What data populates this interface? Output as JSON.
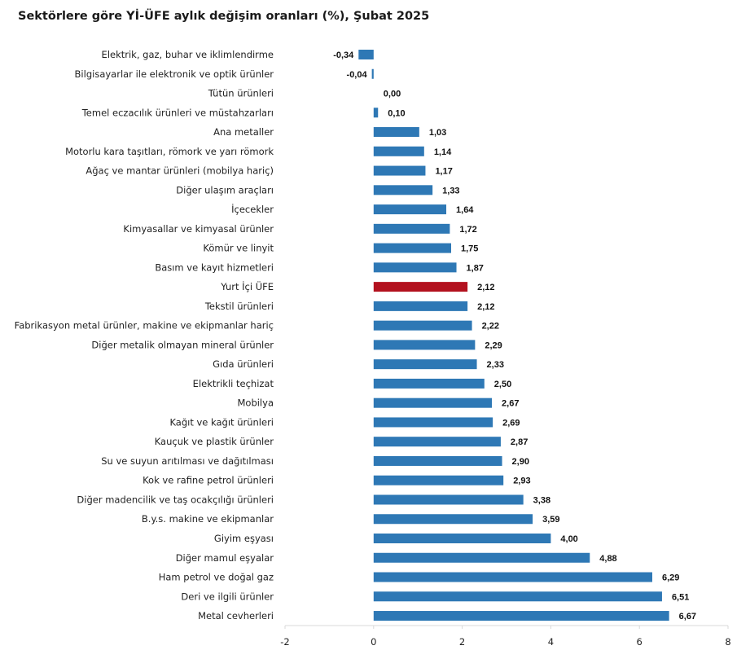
{
  "chart_data": {
    "type": "bar",
    "orientation": "horizontal",
    "title": "Sektörlere göre Yİ-ÜFE aylık değişim oranları (%), Şubat 2025",
    "xlabel": "",
    "ylabel": "",
    "xlim": [
      -2,
      8
    ],
    "ticks": [
      "-2",
      "0",
      "2",
      "4",
      "6",
      "8"
    ],
    "tick_values": [
      -2,
      0,
      2,
      4,
      6,
      8
    ],
    "grid": false,
    "default_color": "#2e78b5",
    "highlight_color": "#b3121f",
    "highlight_category": "Yurt İçi ÜFE",
    "categories": [
      "Elektrik, gaz, buhar ve iklimlendirme",
      "Bilgisayarlar ile elektronik ve optik ürünler",
      "Tütün ürünleri",
      "Temel eczacılık ürünleri ve müstahzarları",
      "Ana metaller",
      "Motorlu kara taşıtları, römork ve yarı römork",
      "Ağaç ve mantar ürünleri (mobilya hariç)",
      "Diğer ulaşım araçları",
      "İçecekler",
      "Kimyasallar ve kimyasal ürünler",
      "Kömür ve linyit",
      "Basım ve kayıt hizmetleri",
      "Yurt İçi ÜFE",
      "Tekstil ürünleri",
      "Fabrikasyon metal ürünler, makine ve ekipmanlar hariç",
      "Diğer metalik olmayan mineral ürünler",
      "Gıda ürünleri",
      "Elektrikli teçhizat",
      "Mobilya",
      "Kağıt ve kağıt ürünleri",
      "Kauçuk ve plastik ürünler",
      "Su ve suyun arıtılması ve dağıtılması",
      "Kok ve rafine petrol ürünleri",
      "Diğer madencilik ve taş ocakçılığı ürünleri",
      "B.y.s. makine ve ekipmanlar",
      "Giyim eşyası",
      "Diğer mamul eşyalar",
      "Ham petrol ve doğal gaz",
      "Deri ve ilgili ürünler",
      "Metal cevherleri"
    ],
    "values": [
      -0.34,
      -0.04,
      0.0,
      0.1,
      1.03,
      1.14,
      1.17,
      1.33,
      1.64,
      1.72,
      1.75,
      1.87,
      2.12,
      2.12,
      2.22,
      2.29,
      2.33,
      2.5,
      2.67,
      2.69,
      2.87,
      2.9,
      2.93,
      3.38,
      3.59,
      4.0,
      4.88,
      6.29,
      6.51,
      6.67
    ],
    "value_labels": [
      "-0,34",
      "-0,04",
      "0,00",
      "0,10",
      "1,03",
      "1,14",
      "1,17",
      "1,33",
      "1,64",
      "1,72",
      "1,75",
      "1,87",
      "2,12",
      "2,12",
      "2,22",
      "2,29",
      "2,33",
      "2,50",
      "2,67",
      "2,69",
      "2,87",
      "2,90",
      "2,93",
      "3,38",
      "3,59",
      "4,00",
      "4,88",
      "6,29",
      "6,51",
      "6,67"
    ]
  }
}
